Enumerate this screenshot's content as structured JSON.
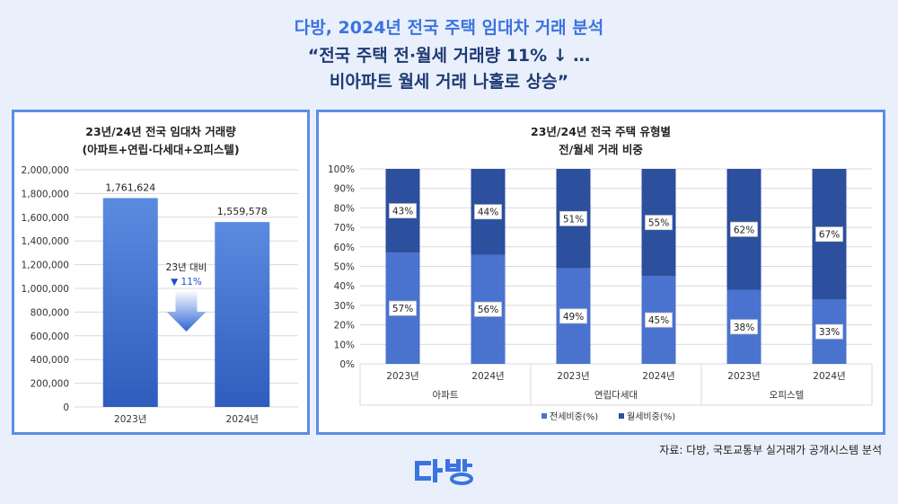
{
  "header": {
    "line1": "다방, 2024년 전국 주택 임대차 거래 분석",
    "line2": "“전국 주택 전·월세 거래량 11% ↓ …",
    "line3": "비아파트 월세 거래 나홀로 상승”"
  },
  "source": "자료: 다방, 국토교통부 실거래가 공개시스템 분석",
  "logo": {
    "icon": "dabang-logo",
    "color": "#3b73e0"
  },
  "chart_data": [
    {
      "type": "bar",
      "title_line1": "23년/24년 전국 임대차 거래량",
      "title_line2": "(아파트+연립·다세대+오피스텔)",
      "categories": [
        "2023년",
        "2024년"
      ],
      "values": [
        1761624,
        1559578
      ],
      "value_labels": [
        "1,761,624",
        "1,559,578"
      ],
      "ylim": [
        0,
        2000000
      ],
      "yticks": [
        "0",
        "200,000",
        "400,000",
        "600,000",
        "800,000",
        "1,000,000",
        "1,200,000",
        "1,400,000",
        "1,600,000",
        "1,800,000",
        "2,000,000"
      ],
      "annotation": {
        "label": "23년 대비",
        "change": "▼ 11%",
        "icon": "down-arrow-icon"
      },
      "grid": true,
      "bar_color": "#3f6fd1"
    },
    {
      "type": "bar",
      "stacked": true,
      "title_line1": "23년/24년 전국 주택 유형별",
      "title_line2": "전/월세 거래 비중",
      "groups": [
        "아파트",
        "연립다세대",
        "오피스텔"
      ],
      "categories": [
        "2023년",
        "2024년",
        "2023년",
        "2024년",
        "2023년",
        "2024년"
      ],
      "series": [
        {
          "name": "전세비중(%)",
          "values": [
            57,
            56,
            49,
            45,
            38,
            33
          ],
          "labels": [
            "57%",
            "56%",
            "49%",
            "45%",
            "38%",
            "33%"
          ],
          "color": "#4a72cf"
        },
        {
          "name": "월세비중(%)",
          "values": [
            43,
            44,
            51,
            55,
            62,
            67
          ],
          "labels": [
            "43%",
            "44%",
            "51%",
            "55%",
            "62%",
            "67%"
          ],
          "color": "#2c4f9e"
        }
      ],
      "ylim": [
        0,
        100
      ],
      "yticks": [
        "0%",
        "10%",
        "20%",
        "30%",
        "40%",
        "50%",
        "60%",
        "70%",
        "80%",
        "90%",
        "100%"
      ],
      "legend": "bottom",
      "grid": true
    }
  ]
}
